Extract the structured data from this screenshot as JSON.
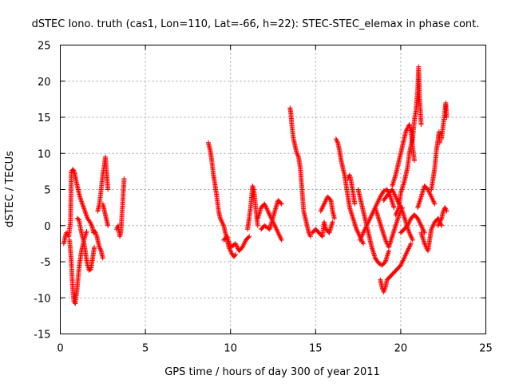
{
  "chart_data": {
    "type": "scatter",
    "title": "dSTEC Iono. truth (cas1, Lon=110, Lat=-66, h=22): STEC-STEC_elemax in phase cont.",
    "xlabel": "GPS time / hours of day 300 of year 2011",
    "ylabel": "dSTEC  / TECUs",
    "xlim": [
      0,
      25
    ],
    "ylim": [
      -15,
      25
    ],
    "xticks": [
      0,
      5,
      10,
      15,
      20,
      25
    ],
    "yticks": [
      -15,
      -10,
      -5,
      0,
      5,
      10,
      15,
      20,
      25
    ],
    "grid": true,
    "marker": "+",
    "color": "#ff0000",
    "segments": [
      [
        [
          0.2,
          -2.5
        ],
        [
          0.35,
          -1.0
        ],
        [
          0.5,
          -1.5
        ],
        [
          0.6,
          0.5
        ],
        [
          0.65,
          7.5
        ],
        [
          0.75,
          7.8
        ],
        [
          0.85,
          7.2
        ],
        [
          0.95,
          6.0
        ],
        [
          1.05,
          5.0
        ],
        [
          1.15,
          4.0
        ],
        [
          1.3,
          3.0
        ],
        [
          1.45,
          2.0
        ],
        [
          1.6,
          1.0
        ],
        [
          1.75,
          0.5
        ],
        [
          1.85,
          0.0
        ],
        [
          1.95,
          -0.8
        ]
      ],
      [
        [
          0.55,
          -2.0
        ],
        [
          0.65,
          -5.0
        ],
        [
          0.72,
          -8.5
        ],
        [
          0.8,
          -10.5
        ],
        [
          0.88,
          -10.8
        ],
        [
          0.95,
          -9.5
        ],
        [
          1.02,
          -8.0
        ],
        [
          1.1,
          -6.0
        ],
        [
          1.18,
          -4.5
        ],
        [
          1.25,
          -3.5
        ],
        [
          1.35,
          -2.5
        ],
        [
          1.45,
          -1.5
        ],
        [
          1.55,
          -0.8
        ]
      ],
      [
        [
          1.0,
          1.0
        ],
        [
          1.1,
          0.8
        ],
        [
          1.2,
          -0.5
        ],
        [
          1.3,
          -1.5
        ],
        [
          1.4,
          -2.5
        ],
        [
          1.5,
          -4.0
        ],
        [
          1.6,
          -5.5
        ],
        [
          1.7,
          -6.2
        ],
        [
          1.8,
          -6.0
        ],
        [
          1.9,
          -4.5
        ],
        [
          2.0,
          -3.0
        ]
      ],
      [
        [
          1.95,
          -1.0
        ],
        [
          2.05,
          -0.8
        ],
        [
          2.15,
          -1.5
        ],
        [
          2.2,
          -2.0
        ],
        [
          2.3,
          -3.0
        ],
        [
          2.4,
          -3.5
        ],
        [
          2.5,
          -4.5
        ]
      ],
      [
        [
          2.2,
          2.0
        ],
        [
          2.3,
          3.0
        ],
        [
          2.4,
          5.0
        ],
        [
          2.5,
          7.0
        ],
        [
          2.6,
          8.5
        ],
        [
          2.65,
          9.5
        ],
        [
          2.7,
          8.0
        ],
        [
          2.75,
          6.5
        ],
        [
          2.8,
          5.0
        ]
      ],
      [
        [
          2.5,
          3.0
        ],
        [
          2.6,
          2.0
        ],
        [
          2.7,
          1.0
        ],
        [
          2.8,
          0.0
        ]
      ],
      [
        [
          3.3,
          -0.5
        ],
        [
          3.4,
          0.0
        ],
        [
          3.5,
          -1.5
        ],
        [
          3.55,
          -1.0
        ],
        [
          3.6,
          0.5
        ],
        [
          3.65,
          2.5
        ],
        [
          3.7,
          4.5
        ],
        [
          3.75,
          6.5
        ]
      ],
      [
        [
          8.7,
          11.5
        ],
        [
          8.8,
          10.5
        ],
        [
          8.9,
          9.0
        ],
        [
          9.0,
          7.0
        ],
        [
          9.1,
          5.5
        ],
        [
          9.2,
          4.0
        ],
        [
          9.3,
          2.0
        ],
        [
          9.4,
          1.0
        ],
        [
          9.5,
          0.5
        ],
        [
          9.6,
          0.0
        ],
        [
          9.7,
          -1.0
        ],
        [
          9.8,
          -2.0
        ],
        [
          9.9,
          -3.0
        ],
        [
          10.0,
          -3.5
        ],
        [
          10.1,
          -4.0
        ],
        [
          10.2,
          -4.3
        ],
        [
          10.3,
          -4.0
        ]
      ],
      [
        [
          9.6,
          -2.0
        ],
        [
          9.8,
          -1.5
        ],
        [
          10.0,
          -3.0
        ],
        [
          10.3,
          -2.5
        ],
        [
          10.5,
          -3.5
        ],
        [
          10.7,
          -3.0
        ],
        [
          10.9,
          -2.0
        ],
        [
          11.1,
          -1.5
        ]
      ],
      [
        [
          11.0,
          -0.5
        ],
        [
          11.1,
          1.0
        ],
        [
          11.2,
          3.0
        ],
        [
          11.3,
          5.5
        ],
        [
          11.4,
          4.5
        ],
        [
          11.5,
          2.0
        ],
        [
          11.6,
          0.0
        ]
      ],
      [
        [
          11.6,
          1.0
        ],
        [
          11.8,
          2.5
        ],
        [
          12.0,
          3.0
        ],
        [
          12.2,
          2.0
        ],
        [
          12.4,
          1.0
        ],
        [
          12.6,
          0.0
        ],
        [
          12.8,
          -1.0
        ],
        [
          13.0,
          -2.0
        ]
      ],
      [
        [
          11.8,
          -0.5
        ],
        [
          12.0,
          0.0
        ],
        [
          12.3,
          -0.5
        ],
        [
          12.6,
          2.0
        ],
        [
          12.8,
          3.5
        ],
        [
          13.0,
          3.0
        ]
      ],
      [
        [
          13.5,
          16.3
        ],
        [
          13.55,
          15.5
        ],
        [
          13.6,
          14.0
        ],
        [
          13.7,
          12.0
        ],
        [
          13.8,
          11.0
        ],
        [
          13.9,
          10.0
        ],
        [
          14.0,
          9.5
        ],
        [
          14.1,
          8.0
        ],
        [
          14.2,
          5.0
        ],
        [
          14.3,
          2.0
        ],
        [
          14.4,
          1.0
        ],
        [
          14.5,
          0.0
        ],
        [
          14.6,
          -1.0
        ],
        [
          14.7,
          -1.5
        ]
      ],
      [
        [
          14.8,
          -1.0
        ],
        [
          15.0,
          -0.5
        ],
        [
          15.2,
          -1.0
        ],
        [
          15.4,
          -1.5
        ],
        [
          15.5,
          0.5
        ],
        [
          15.6,
          -0.5
        ],
        [
          15.8,
          -1.0
        ],
        [
          16.0,
          0.5
        ]
      ],
      [
        [
          15.3,
          2.0
        ],
        [
          15.5,
          3.0
        ],
        [
          15.7,
          4.0
        ],
        [
          15.9,
          3.5
        ],
        [
          16.0,
          2.0
        ],
        [
          16.1,
          1.0
        ]
      ],
      [
        [
          16.2,
          12.0
        ],
        [
          16.3,
          11.5
        ],
        [
          16.4,
          10.5
        ],
        [
          16.5,
          9.0
        ],
        [
          16.6,
          8.0
        ],
        [
          16.7,
          7.0
        ],
        [
          16.8,
          5.5
        ],
        [
          16.9,
          4.0
        ],
        [
          17.0,
          2.5
        ],
        [
          17.2,
          1.0
        ],
        [
          17.4,
          -0.5
        ],
        [
          17.6,
          -1.5
        ],
        [
          17.8,
          -2.5
        ]
      ],
      [
        [
          16.9,
          6.5
        ],
        [
          17.0,
          7.0
        ],
        [
          17.1,
          6.0
        ],
        [
          17.2,
          4.5
        ],
        [
          17.3,
          3.0
        ]
      ],
      [
        [
          17.5,
          5.0
        ],
        [
          17.7,
          3.0
        ],
        [
          17.9,
          1.0
        ],
        [
          18.1,
          -1.0
        ],
        [
          18.3,
          -3.0
        ],
        [
          18.5,
          -4.5
        ],
        [
          18.7,
          -5.2
        ],
        [
          18.9,
          -5.5
        ],
        [
          19.1,
          -5.0
        ],
        [
          19.3,
          -3.5
        ]
      ],
      [
        [
          17.6,
          -2.0
        ],
        [
          17.8,
          -1.0
        ],
        [
          18.0,
          0.0
        ],
        [
          18.2,
          1.0
        ],
        [
          18.4,
          2.0
        ],
        [
          18.6,
          3.0
        ],
        [
          18.8,
          4.0
        ],
        [
          19.0,
          4.8
        ],
        [
          19.2,
          5.0
        ],
        [
          19.4,
          4.0
        ],
        [
          19.6,
          2.5
        ]
      ],
      [
        [
          18.5,
          2.5
        ],
        [
          18.7,
          1.0
        ],
        [
          18.9,
          -0.5
        ],
        [
          19.1,
          -2.0
        ],
        [
          19.3,
          -3.0
        ],
        [
          19.5,
          -1.5
        ],
        [
          19.7,
          0.0
        ],
        [
          19.9,
          1.5
        ],
        [
          20.1,
          2.5
        ]
      ],
      [
        [
          18.8,
          -7.5
        ],
        [
          18.9,
          -8.5
        ],
        [
          19.0,
          -9.2
        ],
        [
          19.1,
          -8.5
        ],
        [
          19.2,
          -7.5
        ],
        [
          19.4,
          -7.0
        ],
        [
          19.6,
          -6.5
        ],
        [
          19.8,
          -6.0
        ],
        [
          20.0,
          -5.5
        ],
        [
          20.2,
          -4.5
        ],
        [
          20.4,
          -3.5
        ],
        [
          20.6,
          -2.5
        ]
      ],
      [
        [
          19.0,
          3.5
        ],
        [
          19.3,
          4.5
        ],
        [
          19.5,
          5.0
        ],
        [
          19.7,
          4.0
        ],
        [
          19.9,
          3.0
        ],
        [
          20.1,
          2.0
        ],
        [
          20.3,
          0.5
        ],
        [
          20.5,
          -1.0
        ],
        [
          20.7,
          -2.0
        ]
      ],
      [
        [
          19.5,
          5.5
        ],
        [
          19.7,
          7.0
        ],
        [
          19.9,
          9.0
        ],
        [
          20.1,
          11.0
        ],
        [
          20.3,
          13.0
        ],
        [
          20.5,
          14.0
        ],
        [
          20.6,
          13.0
        ],
        [
          20.7,
          11.0
        ],
        [
          20.8,
          9.0
        ]
      ],
      [
        [
          19.7,
          1.5
        ],
        [
          19.9,
          2.5
        ],
        [
          20.0,
          4.5
        ],
        [
          20.2,
          6.0
        ],
        [
          20.4,
          8.0
        ],
        [
          20.5,
          10.0
        ],
        [
          20.7,
          12.0
        ],
        [
          20.8,
          14.5
        ],
        [
          20.9,
          16.0
        ],
        [
          21.0,
          19.0
        ],
        [
          21.05,
          22.0
        ],
        [
          21.1,
          18.0
        ],
        [
          21.2,
          14.0
        ]
      ],
      [
        [
          20.0,
          -1.0
        ],
        [
          20.2,
          -0.5
        ],
        [
          20.4,
          0.0
        ],
        [
          20.6,
          1.0
        ],
        [
          20.8,
          1.5
        ],
        [
          21.0,
          1.0
        ],
        [
          21.2,
          0.0
        ],
        [
          21.4,
          -1.0
        ]
      ],
      [
        [
          21.0,
          2.5
        ],
        [
          21.2,
          4.0
        ],
        [
          21.4,
          5.5
        ],
        [
          21.6,
          5.0
        ],
        [
          21.8,
          4.0
        ],
        [
          22.0,
          3.0
        ]
      ],
      [
        [
          21.2,
          -1.0
        ],
        [
          21.4,
          -2.5
        ],
        [
          21.6,
          -3.5
        ],
        [
          21.7,
          -2.0
        ],
        [
          21.8,
          -0.5
        ],
        [
          22.0,
          0.5
        ],
        [
          22.2,
          1.0
        ],
        [
          22.4,
          0.0
        ]
      ],
      [
        [
          21.8,
          5.0
        ],
        [
          21.9,
          6.5
        ],
        [
          22.0,
          8.0
        ],
        [
          22.1,
          10.5
        ],
        [
          22.2,
          12.0
        ],
        [
          22.25,
          13.0
        ],
        [
          22.3,
          11.5
        ]
      ],
      [
        [
          22.4,
          12.0
        ],
        [
          22.5,
          14.0
        ],
        [
          22.6,
          16.0
        ],
        [
          22.65,
          17.0
        ],
        [
          22.7,
          15.0
        ]
      ],
      [
        [
          22.2,
          0.0
        ],
        [
          22.4,
          1.0
        ],
        [
          22.5,
          2.0
        ],
        [
          22.6,
          2.5
        ],
        [
          22.7,
          2.0
        ]
      ]
    ]
  }
}
